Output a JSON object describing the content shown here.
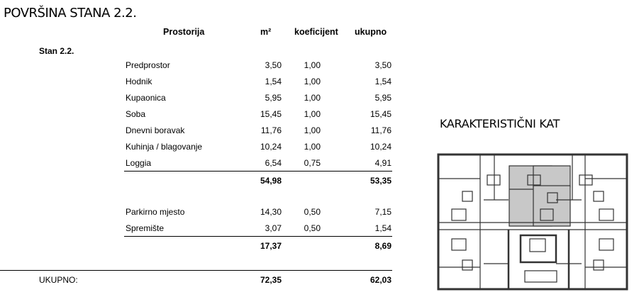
{
  "title": "POVRŠINA STANA 2.2.",
  "headers": {
    "room": "Prostorija",
    "area": "m²",
    "coef": "koeficijent",
    "total": "ukupno"
  },
  "apartment": "Stan 2.2.",
  "rooms": [
    {
      "name": "Predprostor",
      "area": "3,50",
      "coef": "1,00",
      "total": "3,50"
    },
    {
      "name": "Hodnik",
      "area": "1,54",
      "coef": "1,00",
      "total": "1,54"
    },
    {
      "name": "Kupaonica",
      "area": "5,95",
      "coef": "1,00",
      "total": "5,95"
    },
    {
      "name": "Soba",
      "area": "15,45",
      "coef": "1,00",
      "total": "15,45"
    },
    {
      "name": "Dnevni boravak",
      "area": "11,76",
      "coef": "1,00",
      "total": "11,76"
    },
    {
      "name": "Kuhinja / blagovanje",
      "area": "10,24",
      "coef": "1,00",
      "total": "10,24"
    },
    {
      "name": "Loggia",
      "area": "6,54",
      "coef": "0,75",
      "total": "4,91"
    }
  ],
  "subtotal1": {
    "area": "54,98",
    "total": "53,35"
  },
  "extras": [
    {
      "name": "Parkirno mjesto",
      "area": "14,30",
      "coef": "0,50",
      "total": "7,15"
    },
    {
      "name": "Spremište",
      "area": "3,07",
      "coef": "0,50",
      "total": "1,54"
    }
  ],
  "subtotal2": {
    "area": "17,37",
    "total": "8,69"
  },
  "grand": {
    "label": "UKUPNO:",
    "area": "72,35",
    "total": "62,03"
  },
  "plan_title": "KARAKTERISTIČNI KAT",
  "colors": {
    "highlight": "#c8c8c8",
    "walls": "#333333"
  }
}
